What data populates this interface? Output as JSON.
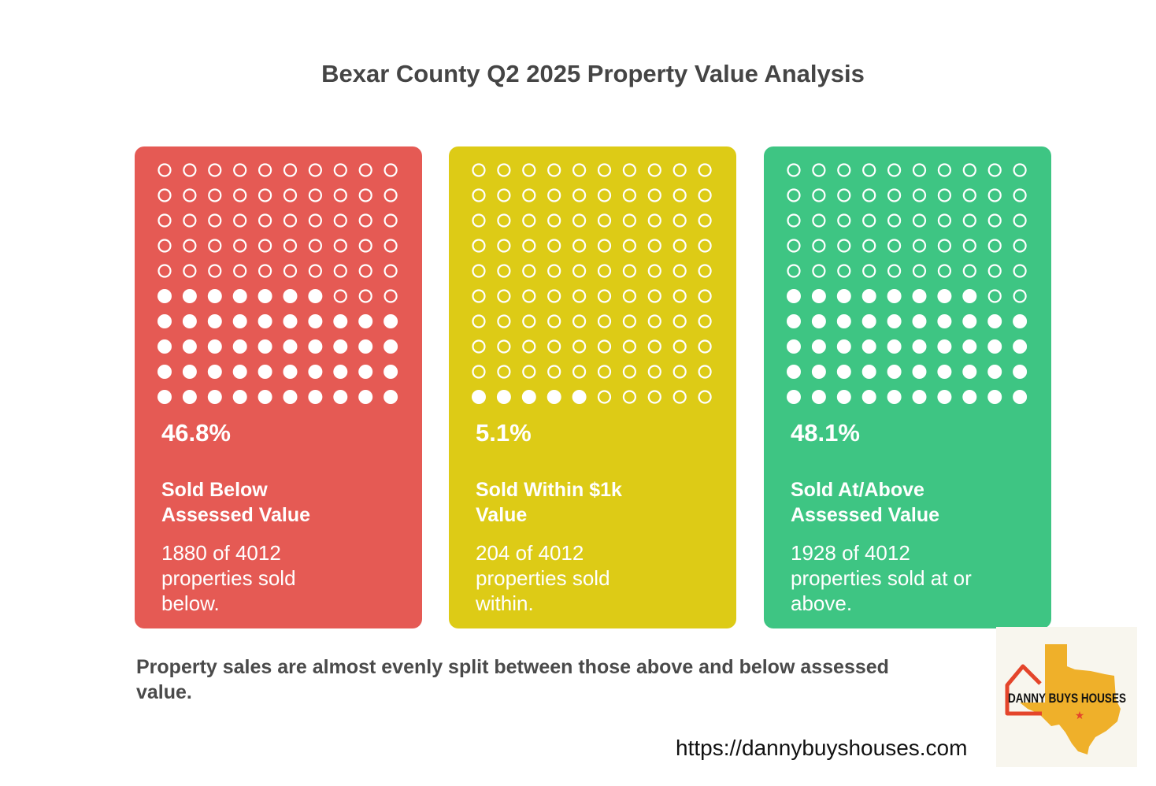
{
  "title": "Bexar County Q2 2025 Property Value Analysis",
  "chart_data": {
    "type": "waffle",
    "grid": {
      "rows": 10,
      "cols": 10
    },
    "total_properties": 4012,
    "categories": [
      {
        "percent_label": "46.8%",
        "value": 46.8,
        "filled_dots": 47,
        "label": "Sold Below Assessed Value",
        "label_lines": [
          "Sold Below",
          "Assessed Value"
        ],
        "count": 1880,
        "description": "1880 of 4012 properties sold below.",
        "color": "#E55A54"
      },
      {
        "percent_label": "5.1%",
        "value": 5.1,
        "filled_dots": 5,
        "label": "Sold Within $1k Value",
        "label_lines": [
          "Sold Within $1k",
          "Value"
        ],
        "count": 204,
        "description": "204 of 4012 properties sold within.",
        "color": "#DDCB16"
      },
      {
        "percent_label": "48.1%",
        "value": 48.1,
        "filled_dots": 48,
        "label": "Sold At/Above Assessed Value",
        "label_lines": [
          "Sold At/Above",
          "Assessed Value"
        ],
        "count": 1928,
        "description": "1928 of 4012 properties sold at or above.",
        "color": "#3EC583"
      }
    ]
  },
  "footer": "Property sales are almost evenly split between those above and below assessed value.",
  "url": "https://dannybuyshouses.com",
  "logo": {
    "text": "DANNY BUYS HOUSES"
  }
}
